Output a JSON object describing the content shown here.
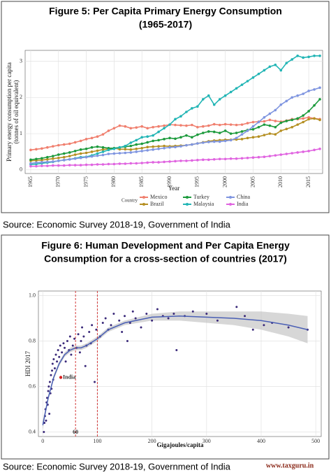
{
  "chart_data": [
    {
      "type": "line",
      "title": [
        "Figure 5: Per Capita Primary Energy Consumption",
        "(1965-2017)"
      ],
      "source": "Source: Economic Survey 2018-19, Government of India",
      "y_label": [
        "Primary energy consumption per capita",
        "(tonnes of oil equivalent)"
      ],
      "x_label": "Year",
      "legend_title": "Country",
      "grid": true,
      "xlim": [
        1964,
        2017.5
      ],
      "xticks": [
        1965,
        1970,
        1975,
        1980,
        1985,
        1990,
        1995,
        2000,
        2005,
        2010,
        2015
      ],
      "ylim": [
        -0.1,
        3.3
      ],
      "yticks": [
        0,
        1,
        2,
        3
      ],
      "x": [
        1965,
        1966,
        1967,
        1968,
        1969,
        1970,
        1971,
        1972,
        1973,
        1974,
        1975,
        1976,
        1977,
        1978,
        1979,
        1980,
        1981,
        1982,
        1983,
        1984,
        1985,
        1986,
        1987,
        1988,
        1989,
        1990,
        1991,
        1992,
        1993,
        1994,
        1995,
        1996,
        1997,
        1998,
        1999,
        2000,
        2001,
        2002,
        2003,
        2004,
        2005,
        2006,
        2007,
        2008,
        2009,
        2010,
        2011,
        2012,
        2013,
        2014,
        2015,
        2016,
        2017
      ],
      "series": [
        {
          "name": "Mexico",
          "color": "#f07f6e",
          "values": [
            0.55,
            0.57,
            0.59,
            0.62,
            0.65,
            0.68,
            0.7,
            0.72,
            0.76,
            0.8,
            0.85,
            0.88,
            0.92,
            0.98,
            1.08,
            1.15,
            1.22,
            1.2,
            1.15,
            1.17,
            1.2,
            1.15,
            1.18,
            1.2,
            1.22,
            1.25,
            1.24,
            1.23,
            1.22,
            1.24,
            1.18,
            1.2,
            1.22,
            1.26,
            1.24,
            1.26,
            1.25,
            1.24,
            1.25,
            1.29,
            1.32,
            1.33,
            1.34,
            1.38,
            1.35,
            1.33,
            1.36,
            1.4,
            1.4,
            1.42,
            1.45,
            1.42,
            1.4
          ]
        },
        {
          "name": "Brazil",
          "color": "#b58f22",
          "values": [
            0.25,
            0.26,
            0.27,
            0.29,
            0.31,
            0.33,
            0.35,
            0.38,
            0.42,
            0.45,
            0.47,
            0.5,
            0.53,
            0.56,
            0.58,
            0.6,
            0.57,
            0.57,
            0.56,
            0.58,
            0.6,
            0.63,
            0.64,
            0.65,
            0.66,
            0.65,
            0.66,
            0.67,
            0.68,
            0.7,
            0.73,
            0.76,
            0.79,
            0.81,
            0.82,
            0.83,
            0.83,
            0.84,
            0.85,
            0.88,
            0.9,
            0.92,
            0.96,
            1.0,
            0.98,
            1.08,
            1.13,
            1.18,
            1.25,
            1.32,
            1.4,
            1.42,
            1.38
          ]
        },
        {
          "name": "Turkey",
          "color": "#1c9a3c",
          "values": [
            0.28,
            0.3,
            0.32,
            0.35,
            0.38,
            0.42,
            0.45,
            0.48,
            0.52,
            0.56,
            0.58,
            0.62,
            0.64,
            0.62,
            0.6,
            0.6,
            0.62,
            0.64,
            0.66,
            0.7,
            0.72,
            0.76,
            0.8,
            0.82,
            0.85,
            0.88,
            0.86,
            0.9,
            0.95,
            0.9,
            0.97,
            1.02,
            1.06,
            1.05,
            1.02,
            1.08,
            1.0,
            1.02,
            1.06,
            1.1,
            1.12,
            1.18,
            1.25,
            1.22,
            1.18,
            1.3,
            1.35,
            1.38,
            1.42,
            1.5,
            1.62,
            1.78,
            1.95
          ]
        },
        {
          "name": "Malaysia",
          "color": "#22b5b5",
          "values": [
            0.15,
            0.16,
            0.18,
            0.2,
            0.22,
            0.25,
            0.27,
            0.29,
            0.32,
            0.35,
            0.36,
            0.4,
            0.45,
            0.5,
            0.55,
            0.58,
            0.62,
            0.66,
            0.75,
            0.82,
            0.9,
            0.92,
            0.95,
            1.05,
            1.15,
            1.25,
            1.4,
            1.48,
            1.6,
            1.7,
            1.75,
            1.95,
            2.05,
            1.8,
            1.95,
            2.05,
            2.15,
            2.25,
            2.35,
            2.45,
            2.55,
            2.65,
            2.75,
            2.85,
            2.9,
            2.75,
            2.95,
            3.05,
            3.15,
            3.1,
            3.12,
            3.15,
            3.15
          ]
        },
        {
          "name": "China",
          "color": "#7f95e0",
          "values": [
            0.18,
            0.2,
            0.21,
            0.22,
            0.23,
            0.25,
            0.27,
            0.29,
            0.31,
            0.33,
            0.35,
            0.37,
            0.39,
            0.41,
            0.44,
            0.45,
            0.46,
            0.47,
            0.48,
            0.5,
            0.52,
            0.54,
            0.56,
            0.58,
            0.6,
            0.62,
            0.63,
            0.65,
            0.68,
            0.7,
            0.73,
            0.75,
            0.77,
            0.78,
            0.78,
            0.8,
            0.82,
            0.88,
            0.98,
            1.08,
            1.2,
            1.32,
            1.45,
            1.55,
            1.65,
            1.8,
            1.9,
            2.0,
            2.05,
            2.1,
            2.18,
            2.22,
            2.27
          ]
        },
        {
          "name": "India",
          "color": "#e064e0",
          "values": [
            0.1,
            0.1,
            0.11,
            0.11,
            0.12,
            0.12,
            0.12,
            0.13,
            0.13,
            0.13,
            0.14,
            0.14,
            0.15,
            0.15,
            0.16,
            0.16,
            0.17,
            0.17,
            0.18,
            0.18,
            0.19,
            0.2,
            0.21,
            0.21,
            0.22,
            0.23,
            0.24,
            0.25,
            0.25,
            0.26,
            0.27,
            0.28,
            0.28,
            0.29,
            0.3,
            0.3,
            0.31,
            0.31,
            0.32,
            0.33,
            0.34,
            0.35,
            0.36,
            0.38,
            0.4,
            0.42,
            0.44,
            0.46,
            0.48,
            0.5,
            0.52,
            0.55,
            0.58
          ]
        }
      ]
    },
    {
      "type": "scatter",
      "title": [
        "Figure 6: Human Development and Per Capita Energy",
        "Consumption for a cross-section of countries (2017)"
      ],
      "source": "Source: Economic Survey 2018-19, Government of India",
      "x_label": "Gigajoules/capita",
      "y_label": "HDI 2017",
      "grid": true,
      "color": "#3b2a7a",
      "xlim": [
        -8,
        510
      ],
      "xticks": [
        0,
        100,
        200,
        300,
        400,
        500
      ],
      "ylim": [
        0.38,
        1.02
      ],
      "yticks": [
        0.4,
        0.6,
        0.8,
        {
          "value": 1,
          "label": "1.0"
        }
      ],
      "vlines": [
        60,
        100
      ],
      "vline_color": "#d23a3a",
      "x": [
        2,
        3,
        4,
        5,
        6,
        7,
        8,
        9,
        10,
        11,
        12,
        13,
        14,
        15,
        16,
        17,
        18,
        19,
        20,
        22,
        24,
        26,
        28,
        30,
        32,
        35,
        38,
        40,
        42,
        45,
        48,
        50,
        52,
        55,
        58,
        62,
        65,
        68,
        70,
        72,
        75,
        78,
        80,
        85,
        88,
        90,
        95,
        98,
        105,
        110,
        115,
        120,
        125,
        130,
        140,
        145,
        150,
        155,
        160,
        165,
        170,
        180,
        190,
        200,
        210,
        220,
        230,
        240,
        245,
        260,
        275,
        300,
        320,
        355,
        370,
        385,
        405,
        420,
        450,
        485
      ],
      "y": [
        0.4,
        0.44,
        0.47,
        0.5,
        0.45,
        0.53,
        0.55,
        0.52,
        0.58,
        0.6,
        0.48,
        0.62,
        0.57,
        0.65,
        0.59,
        0.67,
        0.7,
        0.63,
        0.72,
        0.68,
        0.74,
        0.71,
        0.76,
        0.73,
        0.78,
        0.75,
        0.79,
        0.77,
        0.71,
        0.8,
        0.76,
        0.82,
        0.74,
        0.78,
        0.81,
        0.77,
        0.83,
        0.75,
        0.8,
        0.86,
        0.82,
        0.69,
        0.78,
        0.84,
        0.79,
        0.87,
        0.62,
        0.85,
        0.82,
        0.88,
        0.9,
        0.85,
        0.87,
        0.92,
        0.89,
        0.84,
        0.91,
        0.8,
        0.88,
        0.93,
        0.9,
        0.86,
        0.92,
        0.89,
        0.94,
        0.91,
        0.9,
        0.92,
        0.76,
        0.91,
        0.93,
        0.92,
        0.89,
        0.95,
        0.91,
        0.85,
        0.87,
        0.88,
        0.86,
        0.85
      ],
      "trend": {
        "color": "#4a5fb5",
        "x": [
          0,
          10,
          20,
          30,
          40,
          50,
          60,
          70,
          80,
          100,
          120,
          150,
          200,
          250,
          300,
          350,
          400,
          450,
          485
        ],
        "y": [
          0.43,
          0.55,
          0.64,
          0.7,
          0.74,
          0.76,
          0.77,
          0.77,
          0.78,
          0.81,
          0.85,
          0.88,
          0.905,
          0.91,
          0.905,
          0.9,
          0.89,
          0.87,
          0.85
        ],
        "lower": [
          0.41,
          0.54,
          0.63,
          0.69,
          0.73,
          0.75,
          0.76,
          0.76,
          0.77,
          0.8,
          0.84,
          0.87,
          0.89,
          0.89,
          0.88,
          0.87,
          0.85,
          0.82,
          0.79
        ],
        "upper": [
          0.45,
          0.56,
          0.65,
          0.71,
          0.75,
          0.77,
          0.78,
          0.78,
          0.79,
          0.82,
          0.86,
          0.89,
          0.92,
          0.93,
          0.93,
          0.93,
          0.93,
          0.92,
          0.91
        ]
      },
      "highlight": {
        "label": "India",
        "x": 33,
        "y": 0.64,
        "color": "#d62020"
      }
    }
  ],
  "watermark": "www.taxguru.in"
}
